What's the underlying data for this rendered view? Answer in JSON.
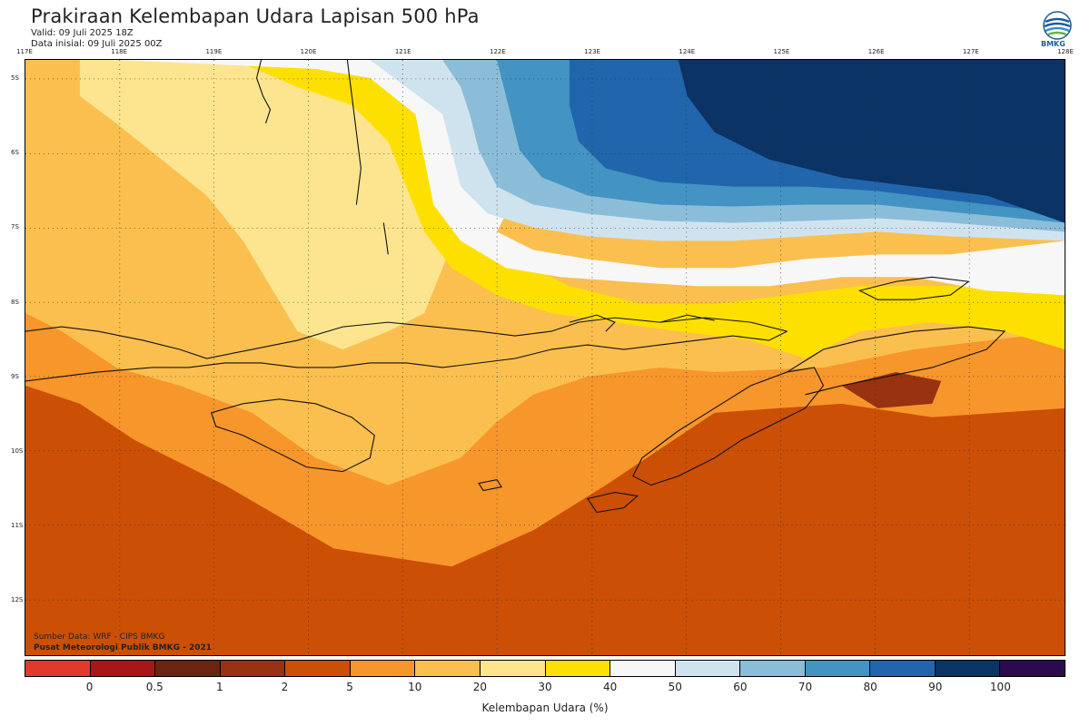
{
  "header": {
    "title": "Prakiraan Kelembapan Udara Lapisan 500 hPa",
    "valid": "Valid: 09 Juli 2025 18Z",
    "initial": "Data inisial: 09 Juli 2025 00Z",
    "logo_text": "BMKG"
  },
  "map": {
    "lon_labels": [
      "117E",
      "118E",
      "119E",
      "120E",
      "121E",
      "122E",
      "123E",
      "124E",
      "125E",
      "126E",
      "127E",
      "128E"
    ],
    "lat_labels": [
      "5S",
      "6S",
      "7S",
      "8S",
      "9S",
      "10S",
      "11S",
      "12S"
    ],
    "source_line": "Sumber Data: WRF - CIPS BMKG",
    "credit_line": "Pusat Meteorologi Publik BMKG - 2021"
  },
  "legend": {
    "title": "Kelembapan Udara (%)",
    "ticks": [
      "0",
      "0.5",
      "1",
      "2",
      "5",
      "10",
      "20",
      "30",
      "40",
      "50",
      "60",
      "70",
      "80",
      "90",
      "100"
    ],
    "colors": [
      "#e03a2e",
      "#a8161a",
      "#6b2410",
      "#993210",
      "#cc4f06",
      "#f7962b",
      "#fbbf4f",
      "#fde58f",
      "#fde000",
      "#f7f7f7",
      "#cfe3ef",
      "#8bbdd9",
      "#4393c3",
      "#2166ac",
      "#0c3366",
      "#2d0a4e"
    ]
  }
}
